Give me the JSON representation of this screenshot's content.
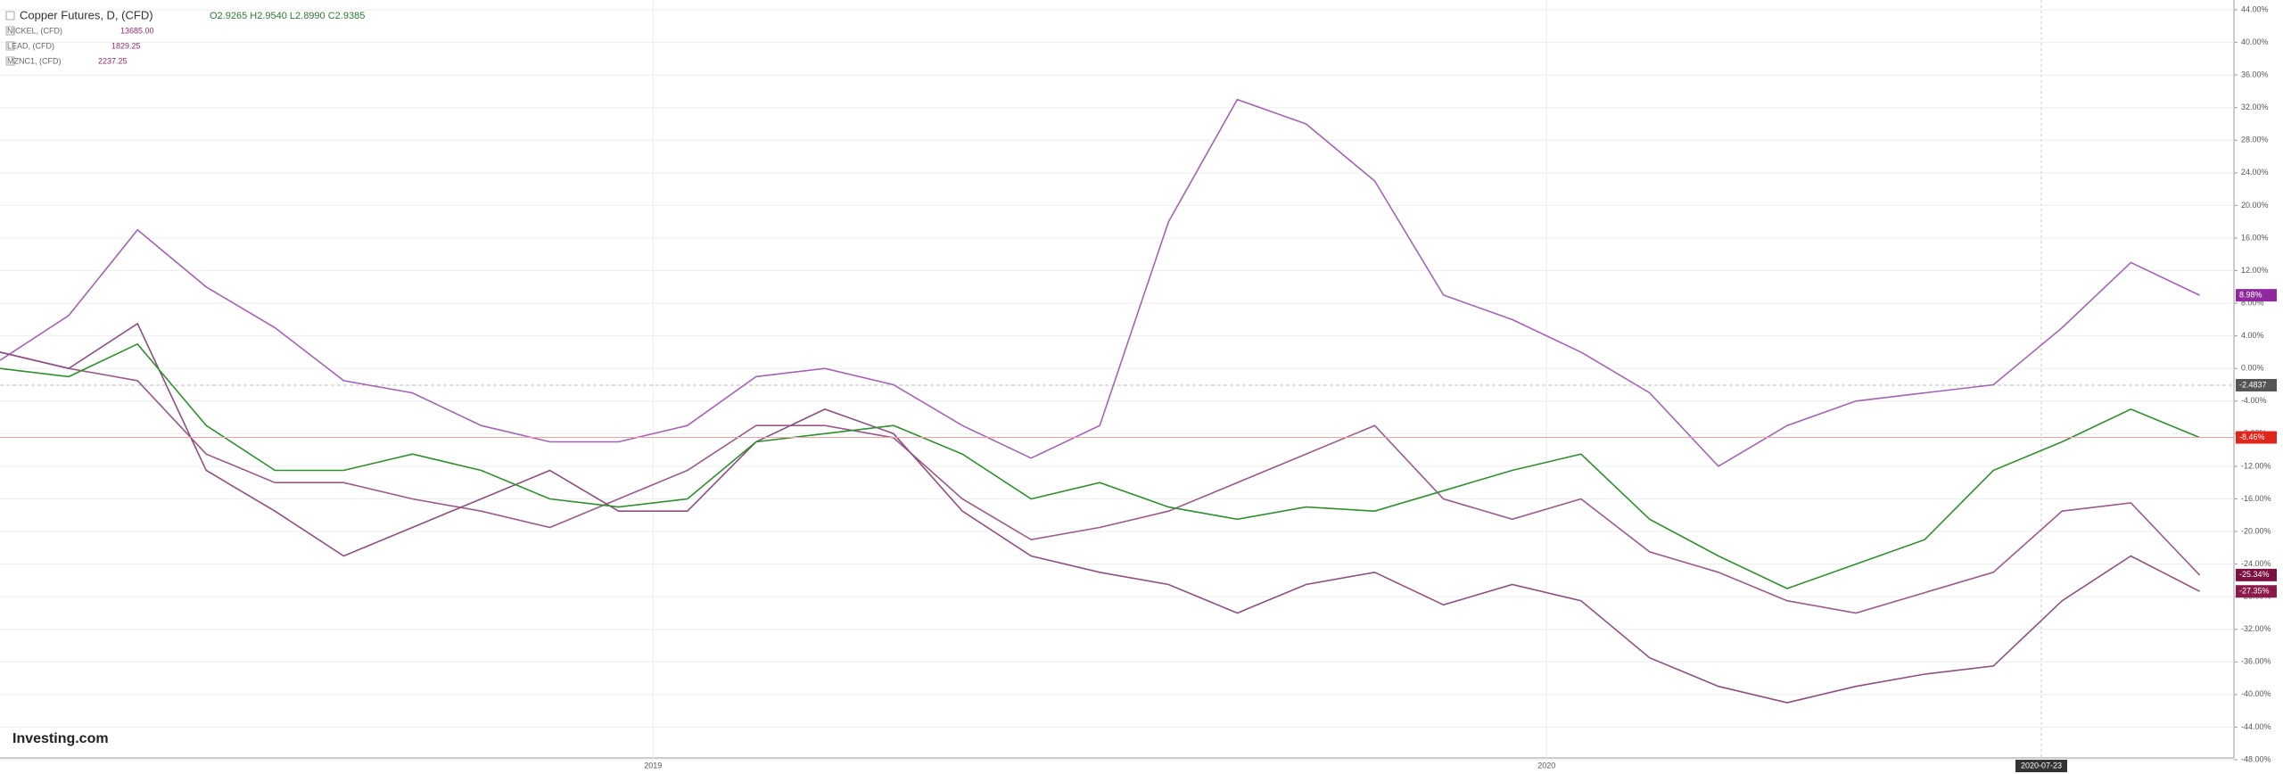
{
  "chart_data": {
    "type": "line",
    "legend": [
      {
        "name": "Copper Futures, D, (CFD)",
        "text": "O2.9265 H2.9540 L2.8990 C2.9385"
      },
      {
        "name": "NICKEL, (CFD)",
        "text": "13685.00"
      },
      {
        "name": "LEAD, (CFD)",
        "text": "1829.25"
      },
      {
        "name": "MZNC1, (CFD)",
        "text": "2237.25"
      }
    ],
    "price_label": "-2.4837",
    "cursor_label": "2020-07-23",
    "logo": "Investing.com",
    "x": [
      0,
      4,
      8,
      12,
      16,
      20,
      24,
      28,
      32,
      36,
      40,
      44,
      48,
      52,
      56,
      60,
      64,
      68,
      72,
      76,
      80,
      84,
      88,
      92,
      96,
      100,
      104,
      108,
      112,
      116,
      120,
      124,
      128
    ],
    "xlim": [
      0,
      130
    ],
    "xticks": [
      {
        "value": 38,
        "label": "2019"
      },
      {
        "value": 90,
        "label": "2020"
      }
    ],
    "ylim": [
      -48,
      44
    ],
    "yticks": [
      {
        "value": 44,
        "label": "44.00%"
      },
      {
        "value": 40,
        "label": "40.00%"
      },
      {
        "value": 36,
        "label": "36.00%"
      },
      {
        "value": 32,
        "label": "32.00%"
      },
      {
        "value": 28,
        "label": "28.00%"
      },
      {
        "value": 24,
        "label": "24.00%"
      },
      {
        "value": 20,
        "label": "20.00%"
      },
      {
        "value": 16,
        "label": "16.00%"
      },
      {
        "value": 12,
        "label": "12.00%"
      },
      {
        "value": 8,
        "label": "8.00%"
      },
      {
        "value": 4,
        "label": "4.00%"
      },
      {
        "value": 0,
        "label": "0.00%"
      },
      {
        "value": -4,
        "label": "-4.00%"
      },
      {
        "value": -8,
        "label": "-8.00%"
      },
      {
        "value": -12,
        "label": "-12.00%"
      },
      {
        "value": -16,
        "label": "-16.00%"
      },
      {
        "value": -20,
        "label": "-20.00%"
      },
      {
        "value": -24,
        "label": "-24.00%"
      },
      {
        "value": -28,
        "label": "-28.00%"
      },
      {
        "value": -32,
        "label": "-32.00%"
      },
      {
        "value": -36,
        "label": "-36.00%"
      },
      {
        "value": -40,
        "label": "-40.00%"
      },
      {
        "value": -44,
        "label": "-44.00%"
      },
      {
        "value": -48,
        "label": "-48.00%"
      }
    ],
    "grid": true,
    "series": [
      {
        "name": "NICKEL",
        "color": "#a463b4",
        "label_color": "#8e2a9e",
        "values": [
          1,
          6.5,
          17,
          10,
          5,
          -1.5,
          -3,
          -7,
          -9,
          -9,
          -7,
          -1,
          0,
          -2,
          -7,
          -11,
          -7,
          18,
          33,
          30,
          23,
          9,
          6,
          2,
          -3,
          -12,
          -7,
          -4,
          -3,
          -2,
          5,
          13,
          8.98
        ],
        "value_labels": [
          null,
          null,
          null,
          null,
          null,
          null,
          null,
          null,
          null,
          null,
          null,
          null,
          null,
          null,
          null,
          null,
          null,
          null,
          null,
          null,
          null,
          null,
          null,
          null,
          null,
          null,
          null,
          null,
          null,
          null,
          null,
          null,
          "8.98%"
        ]
      },
      {
        "name": "LEAD",
        "color": "#9a5a8c",
        "label_color": "#7a1040",
        "values": [
          2,
          0,
          -1.5,
          -10.5,
          -14,
          -14,
          -16,
          -17.5,
          -19.5,
          -16,
          -12.5,
          -7,
          -7,
          -8.5,
          -16,
          -21,
          -19.5,
          -17.5,
          -14,
          -10.5,
          -7,
          -16,
          -18.5,
          -16,
          -22.5,
          -25,
          -28.5,
          -30,
          -27.5,
          -25,
          -17.5,
          -16.5,
          -25.34
        ],
        "value_labels": [
          null,
          null,
          null,
          null,
          null,
          null,
          null,
          null,
          null,
          null,
          null,
          null,
          null,
          null,
          null,
          null,
          null,
          null,
          null,
          null,
          null,
          null,
          null,
          null,
          null,
          null,
          null,
          null,
          null,
          null,
          null,
          null,
          "-25.34%"
        ]
      },
      {
        "name": "MZNC1",
        "color": "#8c4f80",
        "label_color": "#8b1a4a",
        "values": [
          2,
          0,
          5.5,
          -12.5,
          -17.5,
          -23,
          -19.5,
          -16,
          -12.5,
          -17.5,
          -17.5,
          -9,
          -5,
          -8,
          -17.5,
          -23,
          -25,
          -26.5,
          -30,
          -26.5,
          -25,
          -29,
          -26.5,
          -28.5,
          -35.5,
          -39,
          -41,
          -39,
          -37.5,
          -36.5,
          -28.5,
          -23,
          -27.35
        ],
        "value_labels": [
          null,
          null,
          null,
          null,
          null,
          null,
          null,
          null,
          null,
          null,
          null,
          null,
          null,
          null,
          null,
          null,
          null,
          null,
          null,
          null,
          null,
          null,
          null,
          null,
          null,
          null,
          null,
          null,
          null,
          null,
          null,
          null,
          "-27.35%"
        ]
      },
      {
        "name": "Copper Futures",
        "color": "#2f8f2f",
        "label_color": "#e0261c",
        "values": [
          0,
          -1,
          3,
          -7,
          -12.5,
          -12.5,
          -10.5,
          -12.5,
          -16,
          -17,
          -16,
          -9,
          -8,
          -7,
          -10.5,
          -16,
          -14,
          -17,
          -18.5,
          -17,
          -17.5,
          -15,
          -12.5,
          -10.5,
          -18.5,
          -23,
          -27,
          -24,
          -21,
          -12.5,
          -9,
          -5,
          -8.46
        ],
        "value_labels": [
          null,
          null,
          null,
          null,
          null,
          null,
          null,
          null,
          null,
          null,
          null,
          null,
          null,
          null,
          null,
          null,
          null,
          null,
          null,
          null,
          null,
          null,
          null,
          null,
          null,
          null,
          null,
          null,
          null,
          null,
          null,
          null,
          "-8.46%"
        ]
      }
    ]
  }
}
